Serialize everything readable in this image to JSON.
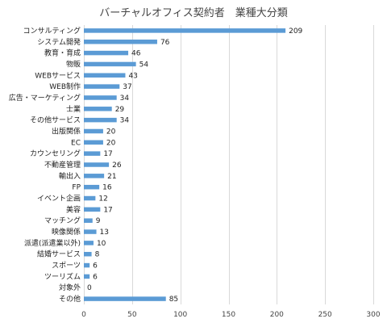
{
  "chart_data": {
    "type": "bar",
    "orientation": "horizontal",
    "title": "バーチャルオフィス契約者　業種大分類",
    "categories": [
      "コンサルティング",
      "システム開発",
      "教育・育成",
      "物販",
      "WEBサービス",
      "WEB制作",
      "広告・マーケティング",
      "士業",
      "その他サービス",
      "出版関係",
      "EC",
      "カウンセリング",
      "不動産管理",
      "輸出入",
      "FP",
      "イベント企画",
      "美容",
      "マッチング",
      "映像関係",
      "派遣(派遣業以外)",
      "結婚サービス",
      "スポーツ",
      "ツーリズム",
      "対象外",
      "その他"
    ],
    "values": [
      209,
      76,
      46,
      54,
      43,
      37,
      34,
      29,
      34,
      20,
      20,
      17,
      26,
      21,
      16,
      12,
      17,
      9,
      13,
      10,
      8,
      6,
      6,
      0,
      85
    ],
    "xlim": [
      0,
      300
    ],
    "xticks": [
      0,
      50,
      100,
      150,
      200,
      250,
      300
    ],
    "grid": true,
    "legend": "none",
    "bar_color": "#5b9bd5",
    "muted_categories": [
      "派遣(派遣業以外)"
    ]
  }
}
